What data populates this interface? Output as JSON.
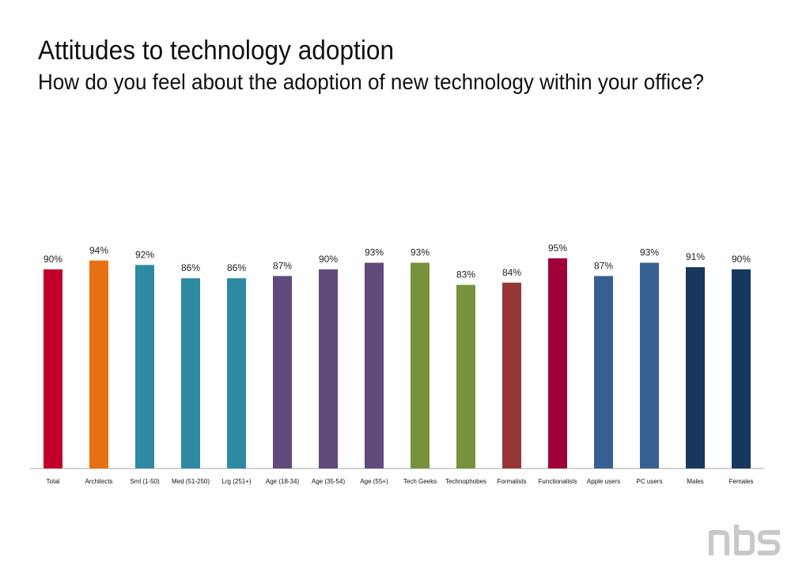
{
  "title": "Attitudes to technology adoption",
  "subtitle": "How do you feel about the adoption of new technology within your office?",
  "logo_text": "nbs",
  "chart_data": {
    "type": "bar",
    "title": "Attitudes to technology adoption",
    "subtitle": "How do you feel about the adoption of new technology within your office?",
    "xlabel": "",
    "ylabel": "",
    "ylim": [
      0,
      100
    ],
    "grid": false,
    "legend": "none",
    "value_suffix": "%",
    "categories": [
      "Total",
      "Architects",
      "Sml (1-50)",
      "Med (51-250)",
      "Lrg (251+)",
      "Age (18-34)",
      "Age (35-54)",
      "Age (55+)",
      "Tech Geeks",
      "Technophobes",
      "Formalists",
      "Functionalists",
      "Apple users",
      "PC users",
      "Males",
      "Females"
    ],
    "values": [
      90,
      94,
      92,
      86,
      86,
      87,
      90,
      93,
      93,
      83,
      84,
      95,
      87,
      93,
      91,
      90
    ],
    "data_labels": [
      "90%",
      "94%",
      "92%",
      "86%",
      "86%",
      "87%",
      "90%",
      "93%",
      "93%",
      "83%",
      "84%",
      "95%",
      "87%",
      "93%",
      "91%",
      "90%"
    ],
    "colors": [
      "#c0002a",
      "#e87014",
      "#2e8aa3",
      "#2e8aa3",
      "#2e8aa3",
      "#604a7b",
      "#604a7b",
      "#604a7b",
      "#76923c",
      "#76923c",
      "#953735",
      "#a0003a",
      "#376092",
      "#376092",
      "#17375e",
      "#17375e"
    ]
  }
}
